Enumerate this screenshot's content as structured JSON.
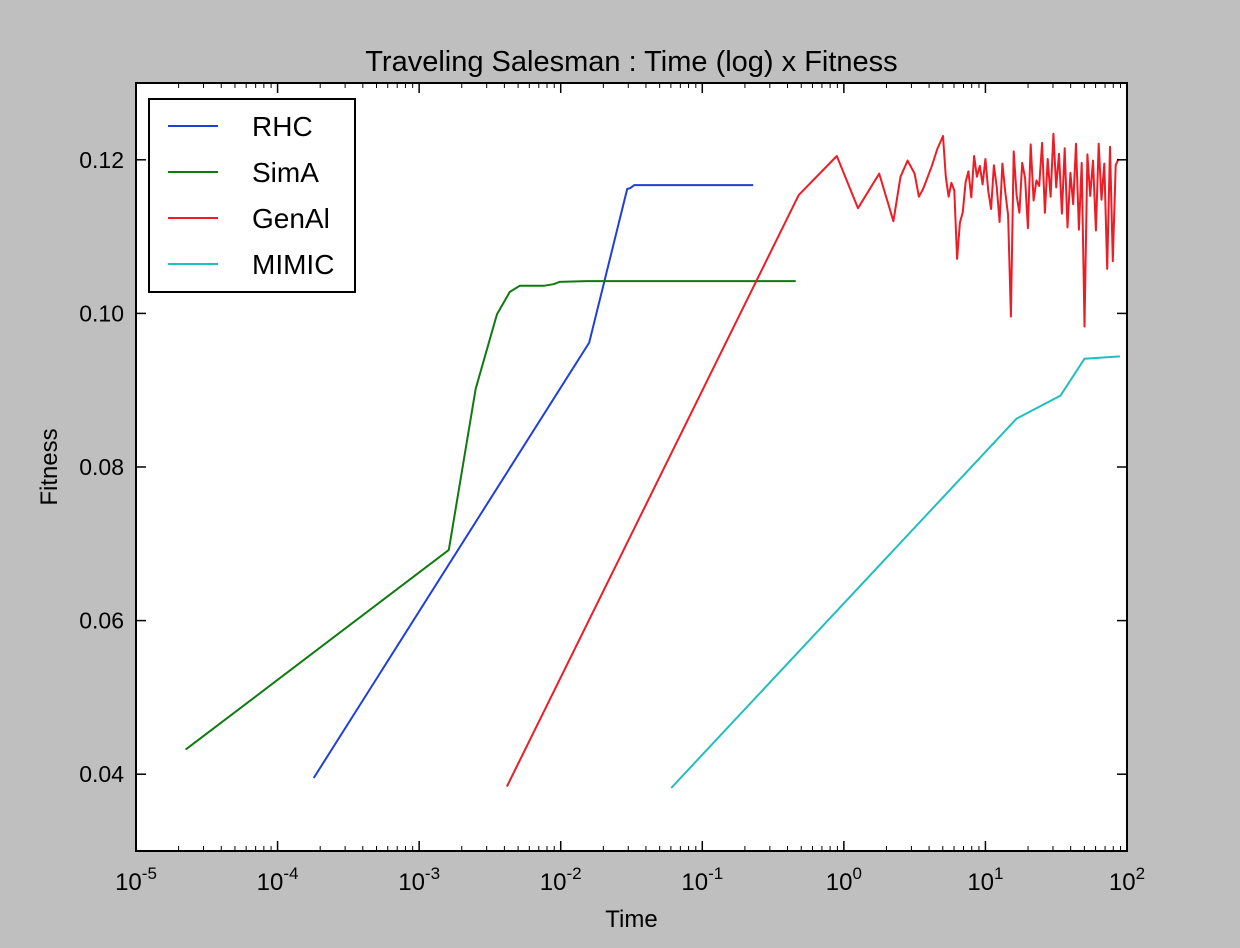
{
  "chart_data": {
    "type": "line",
    "title": "Traveling Salesman : Time (log) x Fitness",
    "xlabel": "Time",
    "ylabel": "Fitness",
    "xscale": "log",
    "xlim": [
      1e-05,
      100
    ],
    "ylim": [
      0.03,
      0.13
    ],
    "x_ticks": [
      {
        "base": "10",
        "exp": "-5",
        "value": 1e-05
      },
      {
        "base": "10",
        "exp": "-4",
        "value": 0.0001
      },
      {
        "base": "10",
        "exp": "-3",
        "value": 0.001
      },
      {
        "base": "10",
        "exp": "-2",
        "value": 0.01
      },
      {
        "base": "10",
        "exp": "-1",
        "value": 0.1
      },
      {
        "base": "10",
        "exp": "0",
        "value": 1
      },
      {
        "base": "10",
        "exp": "1",
        "value": 10
      },
      {
        "base": "10",
        "exp": "2",
        "value": 100
      }
    ],
    "y_ticks": [
      {
        "label": "0.04",
        "value": 0.04
      },
      {
        "label": "0.06",
        "value": 0.06
      },
      {
        "label": "0.08",
        "value": 0.08
      },
      {
        "label": "0.10",
        "value": 0.1
      },
      {
        "label": "0.12",
        "value": 0.12
      }
    ],
    "grid": false,
    "legend_position": "top-left",
    "series": [
      {
        "name": "RHC",
        "color": "#1f3fdb",
        "x": [
          0.00018,
          0.0159,
          0.0295,
          0.0309,
          0.0331,
          0.0513,
          0.1,
          0.229
        ],
        "y": [
          0.0395,
          0.0962,
          0.1162,
          0.1163,
          0.1167,
          0.1167,
          0.1167,
          0.1167
        ]
      },
      {
        "name": "SimA",
        "color": "#0f7a0f",
        "x": [
          2.24e-05,
          0.00162,
          0.00251,
          0.00355,
          0.00437,
          0.00513,
          0.00617,
          0.00759,
          0.0089,
          0.0098,
          0.0151,
          0.02,
          0.05,
          0.1,
          0.2,
          0.457
        ],
        "y": [
          0.0432,
          0.0692,
          0.0902,
          0.0999,
          0.1028,
          0.1036,
          0.1036,
          0.1036,
          0.1038,
          0.1041,
          0.1042,
          0.1042,
          0.1042,
          0.1042,
          0.1042,
          0.1042
        ]
      },
      {
        "name": "GenAl",
        "color": "#ee1c25",
        "x": [
          0.00417,
          0.48,
          0.891,
          1.259,
          1.778,
          2.239,
          2.512,
          2.818,
          3.162,
          3.388,
          3.631,
          4.169,
          4.571,
          5.012,
          5.248,
          5.495,
          5.754,
          6.026,
          6.31,
          6.607,
          6.918,
          7.244,
          7.586,
          7.943,
          8.318,
          8.71,
          9.12,
          9.55,
          10.0,
          10.47,
          10.96,
          11.48,
          12.02,
          12.59,
          13.18,
          13.8,
          14.45,
          15.14,
          15.85,
          16.6,
          17.38,
          18.2,
          19.05,
          19.95,
          20.89,
          21.88,
          22.91,
          23.99,
          25.12,
          26.3,
          27.54,
          28.84,
          30.2,
          31.62,
          33.11,
          34.67,
          36.31,
          38.02,
          39.81,
          41.69,
          43.65,
          45.71,
          47.86,
          50.12,
          52.48,
          54.95,
          57.54,
          60.26,
          63.1,
          66.07,
          69.18,
          72.44,
          75.86,
          79.43,
          83.18,
          87.1
        ],
        "y": [
          0.0384,
          0.1154,
          0.1205,
          0.1137,
          0.1182,
          0.112,
          0.1178,
          0.1199,
          0.1182,
          0.1152,
          0.1162,
          0.1191,
          0.1214,
          0.1231,
          0.1178,
          0.1152,
          0.117,
          0.116,
          0.1071,
          0.1118,
          0.1132,
          0.1171,
          0.1185,
          0.1151,
          0.1205,
          0.1178,
          0.1192,
          0.1168,
          0.1201,
          0.1159,
          0.1136,
          0.1193,
          0.1165,
          0.1119,
          0.1195,
          0.1159,
          0.1128,
          0.0996,
          0.1211,
          0.1154,
          0.1131,
          0.1196,
          0.1176,
          0.1111,
          0.122,
          0.1147,
          0.1173,
          0.1166,
          0.1222,
          0.1131,
          0.1201,
          0.1152,
          0.1234,
          0.1164,
          0.1208,
          0.113,
          0.1215,
          0.1112,
          0.1183,
          0.1142,
          0.1221,
          0.1109,
          0.1196,
          0.0983,
          0.1207,
          0.1153,
          0.1199,
          0.1108,
          0.1221,
          0.1148,
          0.1195,
          0.1058,
          0.1217,
          0.1068,
          0.1193,
          0.1201
        ]
      },
      {
        "name": "MIMIC",
        "color": "#20bfbf",
        "x": [
          0.0603,
          16.6,
          33.9,
          50.1,
          89.1
        ],
        "y": [
          0.0382,
          0.0863,
          0.0893,
          0.0941,
          0.0944
        ]
      }
    ]
  }
}
